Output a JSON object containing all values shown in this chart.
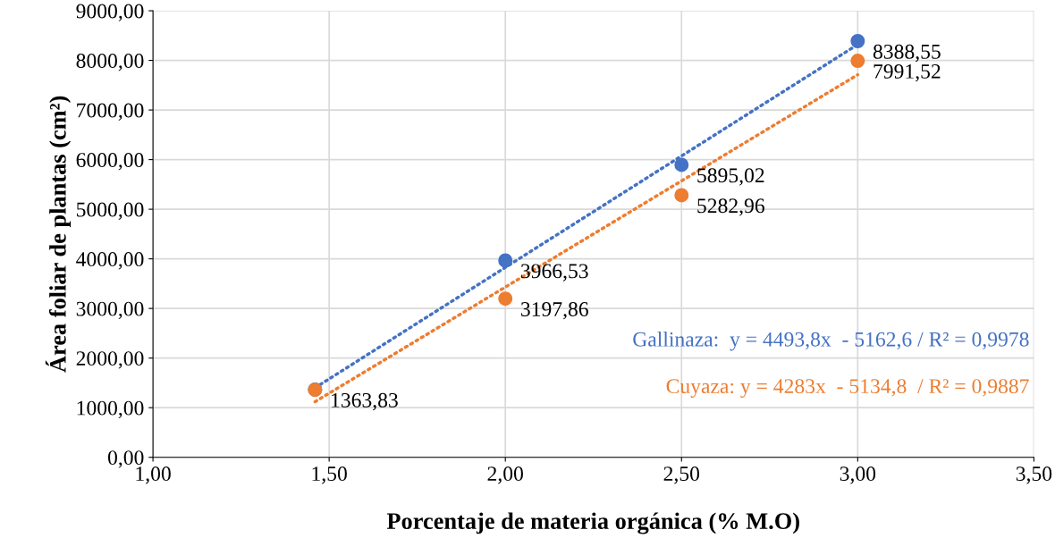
{
  "chart_data": {
    "type": "scatter",
    "xlabel": "Porcentaje de materia orgánica (% M.O)",
    "ylabel": "Área foliar de plantas (cm²)",
    "series": [
      {
        "marker": "circle",
        "color": "#4472c4",
        "x": [
          1.46,
          2.0,
          2.5,
          3.0
        ],
        "values": [
          1363.83,
          3966.53,
          5895.02,
          8388.55
        ],
        "value_labels": [
          "1363,83",
          "3966,53",
          "5895,02",
          "8388,55"
        ]
      },
      {
        "marker": "circle",
        "color": "#ed7d31",
        "x": [
          1.46,
          2.0,
          2.5,
          3.0
        ],
        "values": [
          1360,
          3197.86,
          5282.96,
          7991.52
        ],
        "value_labels": [
          null,
          "3197,86",
          "5282,96",
          "7991,52"
        ]
      },
      {
        "type": "line",
        "color": "#4472c4",
        "line_style": "dotted",
        "x": [
          1.46,
          3.0
        ],
        "values": [
          1400,
          8320
        ]
      },
      {
        "type": "line",
        "color": "#ed7d31",
        "line_style": "dotted",
        "x": [
          1.46,
          3.0
        ],
        "values": [
          1120,
          7710
        ]
      }
    ],
    "annotations": [
      "Gallinaza:  y = 4493,8x  - 5162,6 / R² = 0,9978",
      "Cuyaza: y = 4283x  - 5134,8  / R² = 0,9887"
    ],
    "grid": true,
    "xlim": [
      1.0,
      3.5
    ],
    "xticks": [
      {
        "value": 1.0,
        "label": "1,00"
      },
      {
        "value": 1.5,
        "label": "1,50"
      },
      {
        "value": 2.0,
        "label": "2,00"
      },
      {
        "value": 2.5,
        "label": "2,50"
      },
      {
        "value": 3.0,
        "label": "3,00"
      },
      {
        "value": 3.5,
        "label": "3,50"
      }
    ],
    "ylim": [
      0,
      9000
    ],
    "yticks": [
      {
        "value": 0,
        "label": "0,00"
      },
      {
        "value": 1000,
        "label": "1000,00"
      },
      {
        "value": 2000,
        "label": "2000,00"
      },
      {
        "value": 3000,
        "label": "3000,00"
      },
      {
        "value": 4000,
        "label": "4000,00"
      },
      {
        "value": 5000,
        "label": "5000,00"
      },
      {
        "value": 6000,
        "label": "6000,00"
      },
      {
        "value": 7000,
        "label": "7000,00"
      },
      {
        "value": 8000,
        "label": "8000,00"
      },
      {
        "value": 9000,
        "label": "9000,00"
      }
    ]
  }
}
